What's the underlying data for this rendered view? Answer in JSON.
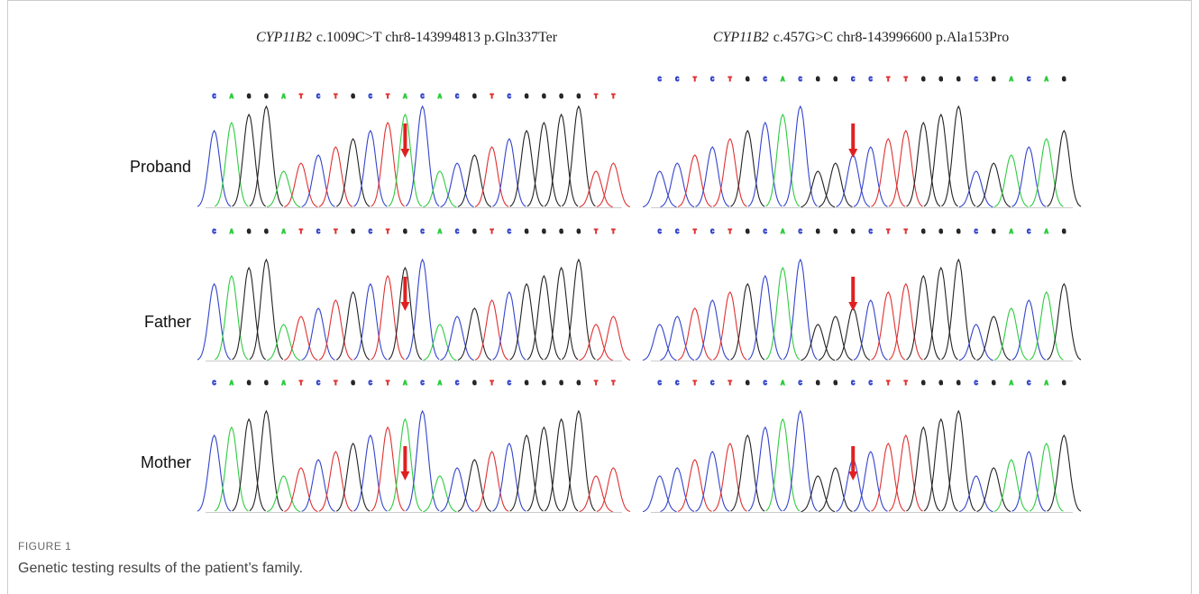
{
  "row_labels": [
    "Proband",
    "Father",
    "Mother"
  ],
  "panels": [
    {
      "gene": "CYP11B2",
      "variant": "c.1009C>T chr8-143994813 p.Gln337Ter",
      "sequences": [
        [
          "C",
          "A",
          "G",
          "G",
          "A",
          "T",
          "C",
          "T",
          "G",
          "C",
          "T",
          "A",
          "C",
          "A",
          "C",
          "G",
          "T",
          "C",
          "G",
          "G",
          "G",
          "G",
          "T",
          "T"
        ],
        [
          "C",
          "A",
          "G",
          "G",
          "A",
          "T",
          "C",
          "T",
          "G",
          "C",
          "T",
          "G",
          "C",
          "A",
          "C",
          "G",
          "T",
          "C",
          "G",
          "G",
          "G",
          "G",
          "T",
          "T"
        ],
        [
          "C",
          "A",
          "G",
          "G",
          "A",
          "T",
          "C",
          "T",
          "G",
          "C",
          "T",
          "A",
          "C",
          "A",
          "C",
          "G",
          "T",
          "C",
          "G",
          "G",
          "G",
          "G",
          "T",
          "T"
        ]
      ]
    },
    {
      "gene": "CYP11B2",
      "variant": "c.457G>C chr8-143996600 p.Ala153Pro",
      "sequences": [
        [
          "C",
          "C",
          "T",
          "C",
          "T",
          "G",
          "C",
          "A",
          "C",
          "G",
          "G",
          "C",
          "C",
          "T",
          "T",
          "G",
          "G",
          "G",
          "C",
          "G",
          "A",
          "C",
          "A",
          "G"
        ],
        [
          "C",
          "C",
          "T",
          "C",
          "T",
          "G",
          "C",
          "A",
          "C",
          "G",
          "G",
          "G",
          "C",
          "T",
          "T",
          "G",
          "G",
          "G",
          "C",
          "G",
          "A",
          "C",
          "A",
          "G"
        ],
        [
          "C",
          "C",
          "T",
          "C",
          "T",
          "G",
          "C",
          "A",
          "C",
          "G",
          "G",
          "C",
          "C",
          "T",
          "T",
          "G",
          "G",
          "G",
          "C",
          "G",
          "A",
          "C",
          "A",
          "G"
        ]
      ]
    }
  ],
  "figure": {
    "label": "FIGURE 1",
    "caption": "Genetic testing results of the patient’s family."
  }
}
